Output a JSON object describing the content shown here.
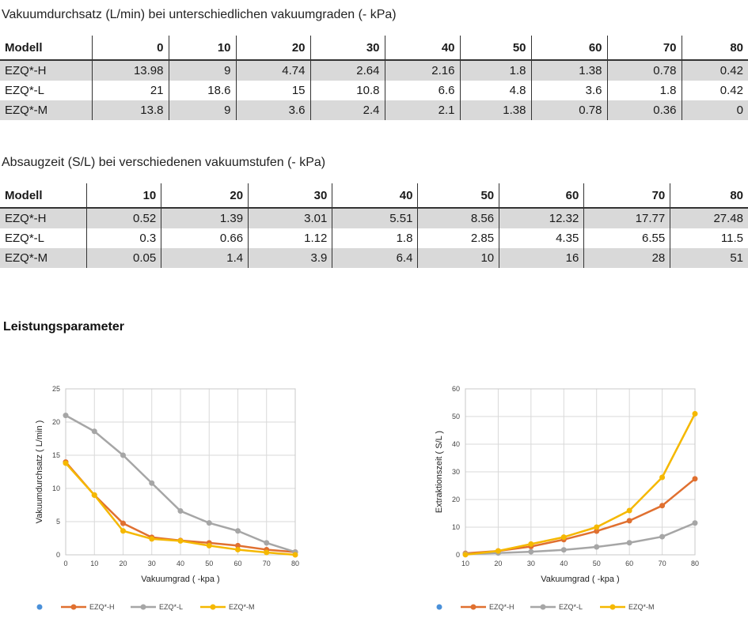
{
  "table1": {
    "caption": "Vakuumdurchsatz (L/min) bei unterschiedlichen vakuumgraden (- kPa)",
    "header": [
      "Modell",
      "0",
      "10",
      "20",
      "30",
      "40",
      "50",
      "60",
      "70",
      "80"
    ],
    "rows": [
      [
        "EZQ*-H",
        "13.98",
        "9",
        "4.74",
        "2.64",
        "2.16",
        "1.8",
        "1.38",
        "0.78",
        "0.42"
      ],
      [
        "EZQ*-L",
        "21",
        "18.6",
        "15",
        "10.8",
        "6.6",
        "4.8",
        "3.6",
        "1.8",
        "0.42"
      ],
      [
        "EZQ*-M",
        "13.8",
        "9",
        "3.6",
        "2.4",
        "2.1",
        "1.38",
        "0.78",
        "0.36",
        "0"
      ]
    ]
  },
  "table2": {
    "caption": "Absaugzeit (S/L) bei verschiedenen vakuumstufen (- kPa)",
    "header": [
      "Modell",
      "10",
      "20",
      "30",
      "40",
      "50",
      "60",
      "70",
      "80"
    ],
    "rows": [
      [
        "EZQ*-H",
        "0.52",
        "1.39",
        "3.01",
        "5.51",
        "8.56",
        "12.32",
        "17.77",
        "27.48"
      ],
      [
        "EZQ*-L",
        "0.3",
        "0.66",
        "1.12",
        "1.8",
        "2.85",
        "4.35",
        "6.55",
        "11.5"
      ],
      [
        "EZQ*-M",
        "0.05",
        "1.4",
        "3.9",
        "6.4",
        "10",
        "16",
        "28",
        "51"
      ]
    ]
  },
  "section_title": "Leistungsparameter",
  "chart_data": [
    {
      "type": "line",
      "title": "",
      "xlabel": "Vakuumgrad ( -kpa )",
      "ylabel": "Vakuumdurchsatz ( L/min )",
      "x": [
        0,
        10,
        20,
        30,
        40,
        50,
        60,
        70,
        80
      ],
      "xlim": [
        0,
        80
      ],
      "ylim": [
        0,
        25
      ],
      "yticks": [
        0,
        5,
        10,
        15,
        20,
        25
      ],
      "grid": true,
      "legend": "bottom",
      "legend_extra_marker": true,
      "series": [
        {
          "name": "EZQ*-H",
          "color": "#E07030",
          "values": [
            13.98,
            9,
            4.74,
            2.64,
            2.16,
            1.8,
            1.38,
            0.78,
            0.42
          ]
        },
        {
          "name": "EZQ*-L",
          "color": "#A6A6A6",
          "values": [
            21,
            18.6,
            15,
            10.8,
            6.6,
            4.8,
            3.6,
            1.8,
            0.42
          ]
        },
        {
          "name": "EZQ*-M",
          "color": "#F5B800",
          "values": [
            13.8,
            9,
            3.6,
            2.4,
            2.1,
            1.38,
            0.78,
            0.36,
            0
          ]
        }
      ]
    },
    {
      "type": "line",
      "title": "",
      "xlabel": "Vakuumgrad ( -kpa )",
      "ylabel": "Extraktionszeit ( S/L )",
      "x": [
        10,
        20,
        30,
        40,
        50,
        60,
        70,
        80
      ],
      "xlim": [
        10,
        80
      ],
      "ylim": [
        0,
        60
      ],
      "yticks": [
        0,
        10,
        20,
        30,
        40,
        50,
        60
      ],
      "grid": true,
      "legend": "bottom",
      "legend_extra_marker": true,
      "series": [
        {
          "name": "EZQ*-H",
          "color": "#E07030",
          "values": [
            0.52,
            1.39,
            3.01,
            5.51,
            8.56,
            12.32,
            17.77,
            27.48
          ]
        },
        {
          "name": "EZQ*-L",
          "color": "#A6A6A6",
          "values": [
            0.3,
            0.66,
            1.12,
            1.8,
            2.85,
            4.35,
            6.55,
            11.5
          ]
        },
        {
          "name": "EZQ*-M",
          "color": "#F5B800",
          "values": [
            0.05,
            1.4,
            3.9,
            6.4,
            10,
            16,
            28,
            51
          ]
        }
      ]
    }
  ],
  "legend_dot_color": "#4A90D9"
}
